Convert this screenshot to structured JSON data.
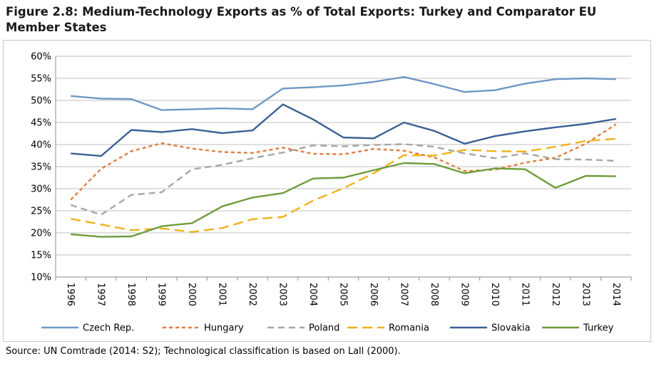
{
  "title": "Figure 2.8: Medium-Technology Exports as % of Total Exports: Turkey and Comparator EU Member States",
  "source": "Source: UN Comtrade (2014: S2); Technological classification is based on Lall (2000).",
  "chart_data": {
    "type": "line",
    "categories": [
      "1996",
      "1997",
      "1998",
      "1999",
      "2000",
      "2001",
      "2002",
      "2003",
      "2004",
      "2005",
      "2006",
      "2007",
      "2008",
      "2009",
      "2010",
      "2011",
      "2012",
      "2013",
      "2014"
    ],
    "y_ticks": [
      "10%",
      "15%",
      "20%",
      "25%",
      "30%",
      "35%",
      "40%",
      "45%",
      "50%",
      "55%",
      "60%"
    ],
    "ylim": [
      10,
      60
    ],
    "grid": true,
    "legend_position": "bottom",
    "series": [
      {
        "name": "Czech Rep.",
        "color": "#6f98c4",
        "dash": "solid",
        "values": [
          51.0,
          50.4,
          50.3,
          47.8,
          48.0,
          48.2,
          48.0,
          52.7,
          53.0,
          53.4,
          54.2,
          55.3,
          53.7,
          51.9,
          52.3,
          53.8,
          54.8,
          55.0,
          54.8
        ]
      },
      {
        "name": "Hungary",
        "color": "#e07f3f",
        "dash": "short",
        "values": [
          27.5,
          34.5,
          38.5,
          40.3,
          39.1,
          38.3,
          38.1,
          39.3,
          37.9,
          37.8,
          39.0,
          38.6,
          37.1,
          34.0,
          34.3,
          35.9,
          37.0,
          40.2,
          44.6
        ]
      },
      {
        "name": "Poland",
        "color": "#a6a6a6",
        "dash": "medium",
        "values": [
          26.3,
          24.1,
          28.6,
          29.2,
          34.4,
          35.4,
          36.9,
          38.2,
          39.8,
          39.6,
          39.9,
          40.1,
          39.5,
          38.0,
          36.9,
          38.0,
          36.7,
          36.6,
          36.3
        ]
      },
      {
        "name": "Romania",
        "color": "#f0b21c",
        "dash": "long",
        "values": [
          23.2,
          21.9,
          20.6,
          21.0,
          20.2,
          21.1,
          23.1,
          23.6,
          27.3,
          30.1,
          33.5,
          37.6,
          37.5,
          38.8,
          38.5,
          38.4,
          39.5,
          40.8,
          41.3
        ]
      },
      {
        "name": "Slovakia",
        "color": "#3a5f96",
        "dash": "solid",
        "values": [
          38.0,
          37.4,
          43.3,
          42.8,
          43.5,
          42.6,
          43.2,
          49.1,
          45.7,
          41.6,
          41.4,
          45.0,
          43.1,
          40.2,
          41.9,
          43.0,
          43.9,
          44.7,
          45.8
        ]
      },
      {
        "name": "Turkey",
        "color": "#6e9c3c",
        "dash": "solid",
        "values": [
          19.7,
          19.1,
          19.2,
          21.5,
          22.2,
          26.0,
          28.0,
          29.0,
          32.3,
          32.5,
          34.2,
          35.8,
          35.6,
          33.5,
          34.6,
          34.4,
          30.2,
          32.9,
          32.8
        ]
      }
    ]
  }
}
